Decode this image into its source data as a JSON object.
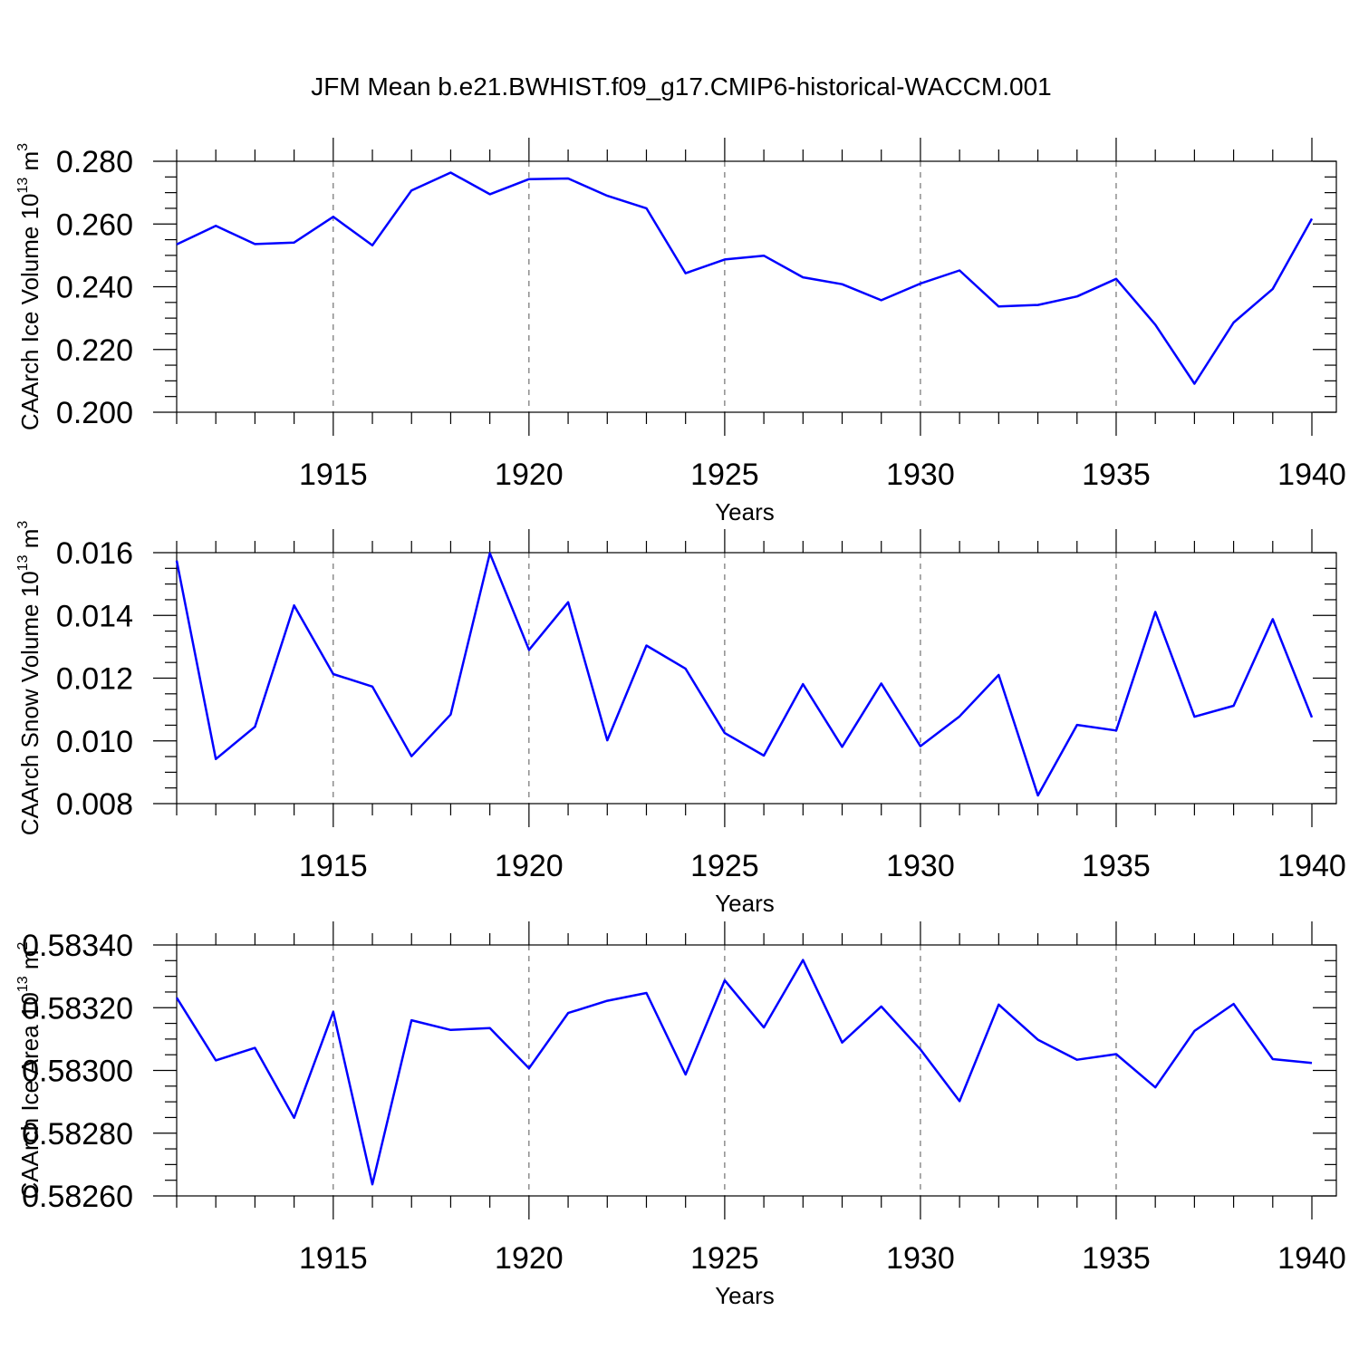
{
  "title": "JFM Mean b.e21.BWHIST.f09_g17.CMIP6-historical-WACCM.001",
  "chart_data": [
    {
      "type": "line",
      "xlabel": "Years",
      "ylabel_text": "CAArch Ice Volume 10",
      "ylabel_exp": "13",
      "ylabel_unit": " m",
      "ylabel_unit_exp": "3",
      "xlim": [
        1911,
        1940
      ],
      "ylim": [
        0.2,
        0.28
      ],
      "xticks": [
        1915,
        1920,
        1925,
        1930,
        1935,
        1940
      ],
      "xtick_labels": [
        "1915",
        "1920",
        "1925",
        "1930",
        "1935",
        "1940"
      ],
      "yticks": [
        0.2,
        0.22,
        0.24,
        0.26,
        0.28
      ],
      "ytick_labels": [
        "0.200",
        "0.220",
        "0.240",
        "0.260",
        "0.280"
      ],
      "grid": "dashed vertical at major x ticks",
      "color": "#0000ff",
      "x": [
        1911,
        1912,
        1913,
        1914,
        1915,
        1916,
        1917,
        1918,
        1919,
        1920,
        1921,
        1922,
        1923,
        1924,
        1925,
        1926,
        1927,
        1928,
        1929,
        1930,
        1931,
        1932,
        1933,
        1934,
        1935,
        1936,
        1937,
        1938,
        1939,
        1940
      ],
      "values": [
        0.2535,
        0.2594,
        0.2536,
        0.2541,
        0.2623,
        0.2532,
        0.2707,
        0.2764,
        0.2695,
        0.2743,
        0.2745,
        0.269,
        0.265,
        0.2443,
        0.2487,
        0.2499,
        0.243,
        0.2408,
        0.2357,
        0.241,
        0.2452,
        0.2337,
        0.2342,
        0.2369,
        0.2425,
        0.2279,
        0.2091,
        0.2286,
        0.2393,
        0.2617
      ]
    },
    {
      "type": "line",
      "xlabel": "Years",
      "ylabel_text": "CAArch Snow Volume 10",
      "ylabel_exp": "13",
      "ylabel_unit": " m",
      "ylabel_unit_exp": "3",
      "xlim": [
        1911,
        1940
      ],
      "ylim": [
        0.008,
        0.016
      ],
      "xticks": [
        1915,
        1920,
        1925,
        1930,
        1935,
        1940
      ],
      "xtick_labels": [
        "1915",
        "1920",
        "1925",
        "1930",
        "1935",
        "1940"
      ],
      "yticks": [
        0.008,
        0.01,
        0.012,
        0.014,
        0.016
      ],
      "ytick_labels": [
        "0.008",
        "0.010",
        "0.012",
        "0.014",
        "0.016"
      ],
      "grid": "dashed vertical at major x ticks",
      "color": "#0000ff",
      "x": [
        1911,
        1912,
        1913,
        1914,
        1915,
        1916,
        1917,
        1918,
        1919,
        1920,
        1921,
        1922,
        1923,
        1924,
        1925,
        1926,
        1927,
        1928,
        1929,
        1930,
        1931,
        1932,
        1933,
        1934,
        1935,
        1936,
        1937,
        1938,
        1939,
        1940
      ],
      "values": [
        0.01575,
        0.00942,
        0.01045,
        0.01432,
        0.01213,
        0.01173,
        0.00951,
        0.01084,
        0.01598,
        0.0129,
        0.01442,
        0.01002,
        0.01304,
        0.0123,
        0.01025,
        0.00953,
        0.01181,
        0.00981,
        0.01183,
        0.00983,
        0.01078,
        0.0121,
        0.00826,
        0.01051,
        0.01033,
        0.01411,
        0.01077,
        0.01112,
        0.01388,
        0.01075
      ]
    },
    {
      "type": "line",
      "xlabel": "Years",
      "ylabel_text": "CAArch Ice Area 10",
      "ylabel_exp": "13",
      "ylabel_unit": " m",
      "ylabel_unit_exp": "2",
      "xlim": [
        1911,
        1940
      ],
      "ylim": [
        0.5826,
        0.5834
      ],
      "xticks": [
        1915,
        1920,
        1925,
        1930,
        1935,
        1940
      ],
      "xtick_labels": [
        "1915",
        "1920",
        "1925",
        "1930",
        "1935",
        "1940"
      ],
      "yticks": [
        0.5826,
        0.5828,
        0.583,
        0.5832,
        0.5834
      ],
      "ytick_labels": [
        "0.58260",
        "0.58280",
        "0.58300",
        "0.58320",
        "0.58340"
      ],
      "grid": "dashed vertical at major x ticks",
      "color": "#0000ff",
      "x": [
        1911,
        1912,
        1913,
        1914,
        1915,
        1916,
        1917,
        1918,
        1919,
        1920,
        1921,
        1922,
        1923,
        1924,
        1925,
        1926,
        1927,
        1928,
        1929,
        1930,
        1931,
        1932,
        1933,
        1934,
        1935,
        1936,
        1937,
        1938,
        1939,
        1940
      ],
      "values": [
        0.583232,
        0.583032,
        0.583072,
        0.582849,
        0.583187,
        0.582637,
        0.58316,
        0.583129,
        0.583135,
        0.583007,
        0.583183,
        0.583222,
        0.583247,
        0.582987,
        0.583287,
        0.583137,
        0.583352,
        0.583089,
        0.583204,
        0.583067,
        0.582902,
        0.58321,
        0.583098,
        0.583034,
        0.583052,
        0.582946,
        0.583126,
        0.583212,
        0.583036,
        0.583024
      ]
    }
  ]
}
